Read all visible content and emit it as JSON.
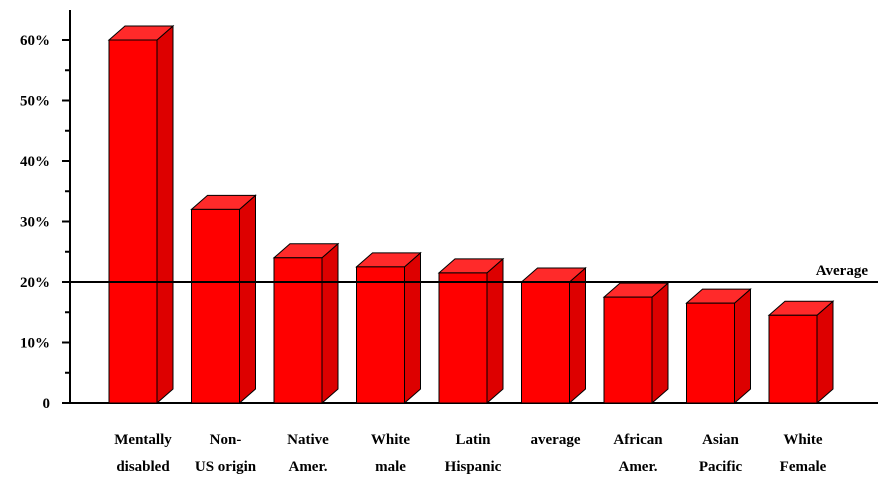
{
  "chart_data": {
    "type": "bar",
    "style": "3d",
    "categories": [
      [
        "Mentally",
        "disabled"
      ],
      [
        "Non-",
        "US origin"
      ],
      [
        "Native",
        "Amer."
      ],
      [
        "White",
        "male"
      ],
      [
        "Latin",
        "Hispanic"
      ],
      [
        "average"
      ],
      [
        "African",
        "Amer."
      ],
      [
        "Asian",
        "Pacific"
      ],
      [
        "White",
        "Female"
      ]
    ],
    "values": [
      60,
      32,
      24,
      22.5,
      21.5,
      20,
      17.5,
      16.5,
      14.5
    ],
    "ylim": [
      0,
      60
    ],
    "yticks": [
      {
        "value": 0,
        "label": "0"
      },
      {
        "value": 10,
        "label": "10%"
      },
      {
        "value": 20,
        "label": "20%"
      },
      {
        "value": 30,
        "label": "30%"
      },
      {
        "value": 40,
        "label": "40%"
      },
      {
        "value": 50,
        "label": "50%"
      },
      {
        "value": 60,
        "label": "60%"
      }
    ],
    "reference_line": {
      "value": 20,
      "label": "Average"
    },
    "colors": {
      "bar_front": "#ff0000",
      "bar_top": "#ff2a2a",
      "bar_side": "#dd0000",
      "outline": "#000000"
    },
    "title": "",
    "xlabel": "",
    "ylabel": "",
    "grid": false,
    "legend": "none"
  }
}
